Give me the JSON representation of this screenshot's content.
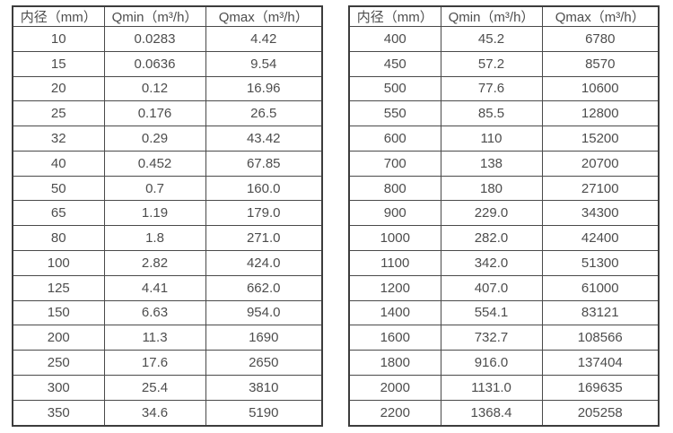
{
  "tables": [
    {
      "name": "flow-table-small-diameters",
      "headers": [
        "内径（mm）",
        "Qmin（m³/h）",
        "Qmax（m³/h）"
      ],
      "rows": [
        [
          "10",
          "0.0283",
          "4.42"
        ],
        [
          "15",
          "0.0636",
          "9.54"
        ],
        [
          "20",
          "0.12",
          "16.96"
        ],
        [
          "25",
          "0.176",
          "26.5"
        ],
        [
          "32",
          "0.29",
          "43.42"
        ],
        [
          "40",
          "0.452",
          "67.85"
        ],
        [
          "50",
          "0.7",
          "160.0"
        ],
        [
          "65",
          "1.19",
          "179.0"
        ],
        [
          "80",
          "1.8",
          "271.0"
        ],
        [
          "100",
          "2.82",
          "424.0"
        ],
        [
          "125",
          "4.41",
          "662.0"
        ],
        [
          "150",
          "6.63",
          "954.0"
        ],
        [
          "200",
          "11.3",
          "1690"
        ],
        [
          "250",
          "17.6",
          "2650"
        ],
        [
          "300",
          "25.4",
          "3810"
        ],
        [
          "350",
          "34.6",
          "5190"
        ]
      ]
    },
    {
      "name": "flow-table-large-diameters",
      "headers": [
        "内径（mm）",
        "Qmin（m³/h）",
        "Qmax（m³/h）"
      ],
      "rows": [
        [
          "400",
          "45.2",
          "6780"
        ],
        [
          "450",
          "57.2",
          "8570"
        ],
        [
          "500",
          "77.6",
          "10600"
        ],
        [
          "550",
          "85.5",
          "12800"
        ],
        [
          "600",
          "110",
          "15200"
        ],
        [
          "700",
          "138",
          "20700"
        ],
        [
          "800",
          "180",
          "27100"
        ],
        [
          "900",
          "229.0",
          "34300"
        ],
        [
          "1000",
          "282.0",
          "42400"
        ],
        [
          "1100",
          "342.0",
          "51300"
        ],
        [
          "1200",
          "407.0",
          "61000"
        ],
        [
          "1400",
          "554.1",
          "83121"
        ],
        [
          "1600",
          "732.7",
          "108566"
        ],
        [
          "1800",
          "916.0",
          "137404"
        ],
        [
          "2000",
          "1131.0",
          "169635"
        ],
        [
          "2200",
          "1368.4",
          "205258"
        ]
      ]
    }
  ]
}
